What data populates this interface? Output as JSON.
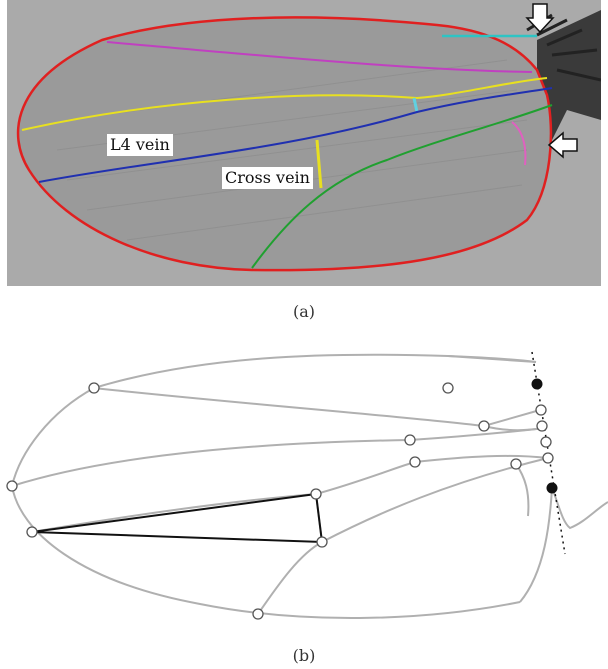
{
  "figure": {
    "panel_a": {
      "caption": "(a)",
      "labels": {
        "l4_vein": "L4 vein",
        "cross_vein": "Cross vein"
      },
      "colors": {
        "background": "#a9a9a9",
        "wing_fill": "#9a9a9a",
        "outline": "#e02020",
        "costal_vein": "#2ec4c4",
        "l2_vein": "#c040c0",
        "l3_vein": "#e8e020",
        "l4_vein": "#2030b0",
        "l5_vein": "#20a030",
        "posterior_crossvein": "#e8e020",
        "anterior_crossvein": "#60d0e0",
        "alula_vein": "#e060c0",
        "arrow_fill": "#ffffff"
      },
      "arrows": [
        "down-arrow-icon",
        "left-arrow-icon"
      ]
    },
    "panel_b": {
      "caption": "(b)",
      "colors": {
        "vein": "#b0b0b0",
        "triangle": "#111111",
        "landmark_open": "#ffffff",
        "landmark_filled": "#111111",
        "dotted_line": "#111111"
      },
      "landmark_count": {
        "open": 15,
        "filled": 2
      }
    }
  }
}
